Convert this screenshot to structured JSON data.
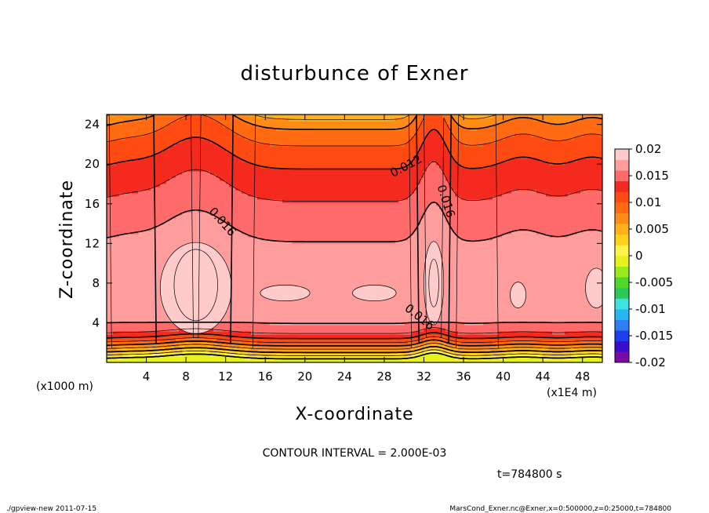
{
  "chart_data": {
    "type": "heatmap",
    "title": "disturbunce of Exner",
    "xlabel": "X-coordinate",
    "ylabel": "Z-coordinate",
    "x_unit_left": "(x1000 m)",
    "x_unit_right": "(x1E4 m)",
    "xlim": [
      0,
      50
    ],
    "ylim": [
      0,
      25
    ],
    "xticks": [
      4,
      8,
      12,
      16,
      20,
      24,
      28,
      32,
      36,
      40,
      44,
      48
    ],
    "xtick_labels": [
      "4",
      "8",
      "12",
      "16",
      "20",
      "24",
      "28",
      "32",
      "36",
      "40",
      "44",
      "48"
    ],
    "yticks": [
      4,
      8,
      12,
      16,
      20,
      24
    ],
    "ytick_labels": [
      "4",
      "8",
      "12",
      "16",
      "20",
      "24"
    ],
    "contour_interval_text": "CONTOUR INTERVAL = 2.000E-03",
    "time_text": "t=784800 s",
    "contour_labels": [
      "0.016",
      "0.012",
      "0.016",
      "0.016"
    ],
    "colorbar": {
      "min": -0.02,
      "max": 0.02,
      "tick_labels": [
        "0.02",
        "0.015",
        "0.01",
        "0.005",
        "0",
        "-0.005",
        "-0.01",
        "-0.015",
        "-0.02"
      ],
      "colors": [
        "#7a0aa6",
        "#3a0ccc",
        "#1f3fee",
        "#2f7ff2",
        "#27b6f2",
        "#3fe2e0",
        "#2ec85a",
        "#4fd82a",
        "#9bea1e",
        "#e7f21c",
        "#fff34a",
        "#ffd21c",
        "#ffb01a",
        "#ff8c14",
        "#ff6a12",
        "#ff4a12",
        "#f52a1e",
        "#ff6a6a",
        "#ff9c9c",
        "#ffcaca"
      ]
    },
    "field_levels": [
      {
        "z": 0.2,
        "value": -0.001
      },
      {
        "z": 0.6,
        "value": 0.0015
      },
      {
        "z": 1.0,
        "value": 0.004
      },
      {
        "z": 1.5,
        "value": 0.007
      },
      {
        "z": 2.0,
        "value": 0.01
      },
      {
        "z": 2.6,
        "value": 0.013
      },
      {
        "z": 3.4,
        "value": 0.0155
      },
      {
        "z": 5.0,
        "value": 0.017
      },
      {
        "z": 7.5,
        "value": 0.018
      },
      {
        "z": 11.0,
        "value": 0.0165
      },
      {
        "z": 14.5,
        "value": 0.015
      },
      {
        "z": 18.0,
        "value": 0.013
      },
      {
        "z": 21.0,
        "value": 0.011
      },
      {
        "z": 23.5,
        "value": 0.008
      },
      {
        "z": 25.0,
        "value": 0.005
      }
    ]
  },
  "footer": {
    "left": "./gpview-new   2011-07-15",
    "right": "MarsCond_Exner.nc@Exner,x=0:500000,z=0:25000,t=784800"
  }
}
